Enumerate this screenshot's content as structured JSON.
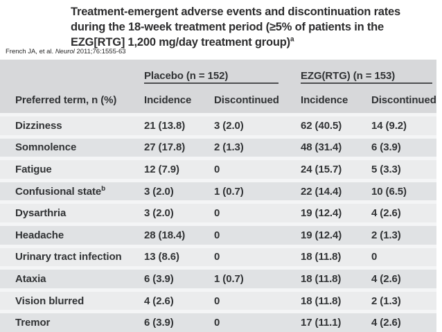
{
  "slide": {
    "title_lines": [
      "Treatment-emergent adverse events and discontinuation rates",
      "during the 18-week treatment period (≥5% of patients in the",
      "EZG[RTG] 1,200 mg/day treatment group)"
    ],
    "title_sup": "a",
    "citation_prefix": "French JA, et al.",
    "citation_journal": "Neurol",
    "citation_suffix": "2011;76:1555-63"
  },
  "table": {
    "group_headers": [
      "Placebo (n = 152)",
      "EZG(RTG) (n = 153)"
    ],
    "col_headers": [
      "Preferred term, n (%)",
      "Incidence",
      "Discontinued",
      "Incidence",
      "Discontinued"
    ],
    "rows": [
      {
        "term": "Dizziness",
        "sup": "",
        "cells": [
          "21 (13.8)",
          "3 (2.0)",
          "62 (40.5)",
          "14 (9.2)"
        ]
      },
      {
        "term": "Somnolence",
        "sup": "",
        "cells": [
          "27 (17.8)",
          "2 (1.3)",
          "48 (31.4)",
          "6 (3.9)"
        ]
      },
      {
        "term": "Fatigue",
        "sup": "",
        "cells": [
          "12 (7.9)",
          "0",
          "24 (15.7)",
          "5 (3.3)"
        ]
      },
      {
        "term": "Confusional state",
        "sup": "b",
        "cells": [
          "3 (2.0)",
          "1 (0.7)",
          "22 (14.4)",
          "10 (6.5)"
        ]
      },
      {
        "term": "Dysarthria",
        "sup": "",
        "cells": [
          "3 (2.0)",
          "0",
          "19 (12.4)",
          "4 (2.6)"
        ]
      },
      {
        "term": "Headache",
        "sup": "",
        "cells": [
          "28 (18.4)",
          "0",
          "19 (12.4)",
          "2 (1.3)"
        ]
      },
      {
        "term": "Urinary tract infection",
        "sup": "",
        "cells": [
          "13 (8.6)",
          "0",
          "18 (11.8)",
          "0"
        ]
      },
      {
        "term": "Ataxia",
        "sup": "",
        "cells": [
          "6 (3.9)",
          "1 (0.7)",
          "18 (11.8)",
          "4 (2.6)"
        ]
      },
      {
        "term": "Vision blurred",
        "sup": "",
        "cells": [
          "4 (2.6)",
          "0",
          "18 (11.8)",
          "2 (1.3)"
        ]
      },
      {
        "term": "Tremor",
        "sup": "",
        "cells": [
          "6 (3.9)",
          "0",
          "17 (11.1)",
          "4 (2.6)"
        ]
      }
    ]
  },
  "colors": {
    "header_bg": "#d7d8da",
    "row_light": "#ebeced",
    "row_dark": "#e0e2e4",
    "separator": "#f4f5f6",
    "rule": "#4d4e50",
    "text": "#303234"
  }
}
